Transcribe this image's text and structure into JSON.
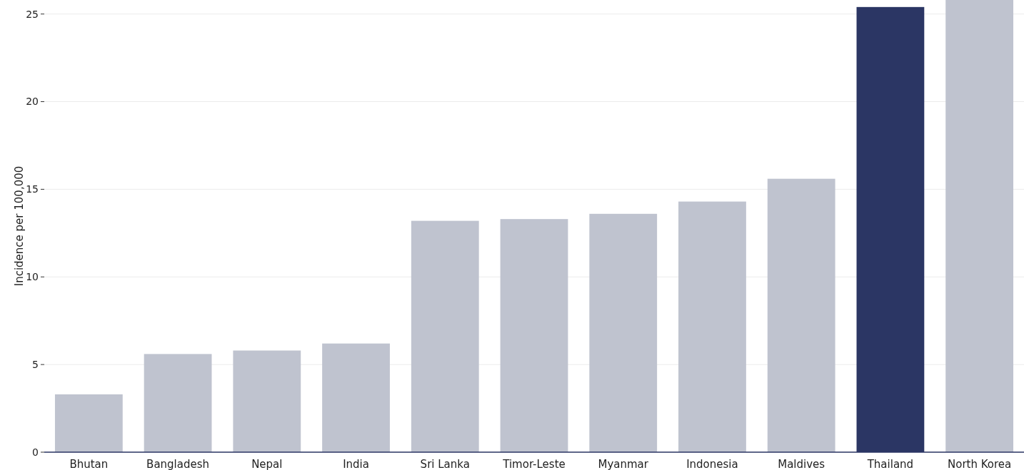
{
  "chart_data": {
    "type": "bar",
    "ylabel": "Incidence per 100,000",
    "categories": [
      "Bhutan",
      "Bangladesh",
      "Nepal",
      "India",
      "Sri Lanka",
      "Timor-Leste",
      "Myanmar",
      "Indonesia",
      "Maldives",
      "Thailand",
      "North Korea"
    ],
    "values": [
      3.3,
      5.6,
      5.8,
      6.2,
      13.2,
      13.3,
      13.6,
      14.3,
      15.6,
      25.4,
      25.8
    ],
    "colors": [
      "#bfc3cf",
      "#bfc3cf",
      "#bfc3cf",
      "#bfc3cf",
      "#bfc3cf",
      "#bfc3cf",
      "#bfc3cf",
      "#bfc3cf",
      "#bfc3cf",
      "#2b3664",
      "#bfc3cf"
    ],
    "ylim": [
      0,
      25.8
    ],
    "yticks": [
      0,
      5,
      10,
      15,
      20,
      25
    ],
    "grid": "y"
  }
}
